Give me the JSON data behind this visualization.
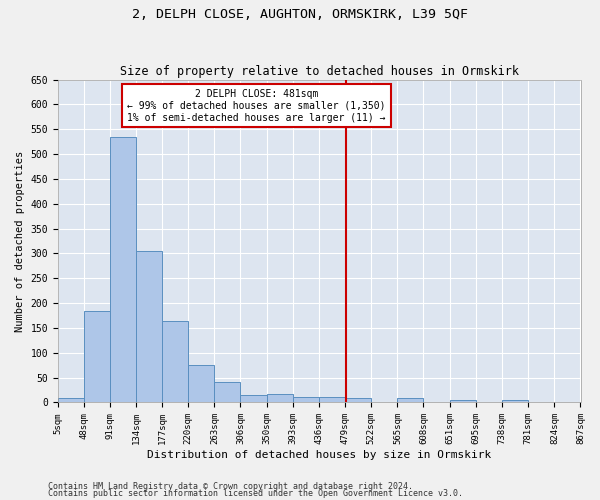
{
  "title": "2, DELPH CLOSE, AUGHTON, ORMSKIRK, L39 5QF",
  "subtitle": "Size of property relative to detached houses in Ormskirk",
  "xlabel": "Distribution of detached houses by size in Ormskirk",
  "ylabel": "Number of detached properties",
  "footer1": "Contains HM Land Registry data © Crown copyright and database right 2024.",
  "footer2": "Contains public sector information licensed under the Open Government Licence v3.0.",
  "bin_edges": [
    5,
    48,
    91,
    134,
    177,
    220,
    263,
    306,
    350,
    393,
    436,
    479,
    522,
    565,
    608,
    651,
    695,
    738,
    781,
    824,
    867
  ],
  "bar_heights": [
    10,
    185,
    535,
    305,
    165,
    75,
    42,
    15,
    18,
    12,
    12,
    8,
    0,
    8,
    0,
    5,
    0,
    5,
    0,
    0
  ],
  "bar_color": "#aec6e8",
  "bar_edge_color": "#5a8fc0",
  "background_color": "#dde5f0",
  "fig_background_color": "#f0f0f0",
  "grid_color": "#ffffff",
  "vline_x": 481,
  "vline_color": "#cc0000",
  "annotation_text": "2 DELPH CLOSE: 481sqm\n← 99% of detached houses are smaller (1,350)\n1% of semi-detached houses are larger (11) →",
  "annotation_box_color": "#ffffff",
  "annotation_box_edge": "#cc0000",
  "ylim": [
    0,
    650
  ],
  "yticks": [
    0,
    50,
    100,
    150,
    200,
    250,
    300,
    350,
    400,
    450,
    500,
    550,
    600,
    650
  ]
}
